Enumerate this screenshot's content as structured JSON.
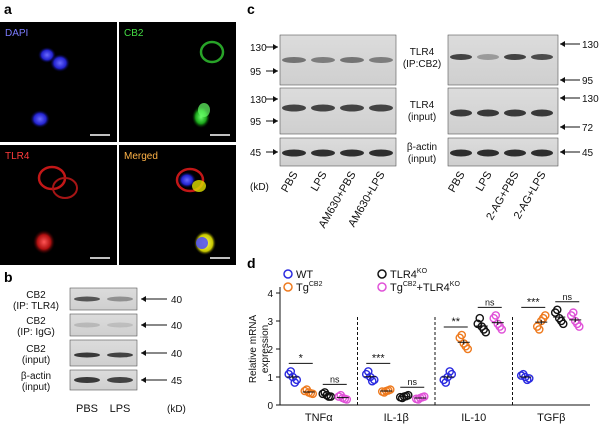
{
  "panels": {
    "a": {
      "letter": "a",
      "tiles": [
        {
          "label": "DAPI",
          "color": "#7b7bff"
        },
        {
          "label": "CB2",
          "color": "#44dd44"
        },
        {
          "label": "TLR4",
          "color": "#ff3b3b"
        },
        {
          "label": "Merged",
          "color": "#ffb347"
        }
      ]
    },
    "b": {
      "letter": "b",
      "rows": [
        {
          "label": [
            "CB2",
            "(IP: TLR4)"
          ],
          "marker": "40"
        },
        {
          "label": [
            "CB2",
            "(IP: IgG)"
          ],
          "marker": "40"
        },
        {
          "label": [
            "CB2",
            "(input)"
          ],
          "marker": "40"
        },
        {
          "label": [
            "β-actin",
            "(input)"
          ],
          "marker": "45"
        }
      ],
      "unit": "(kD)",
      "lanes": [
        "PBS",
        "LPS"
      ]
    },
    "c": {
      "letter": "c",
      "left_markers": [
        {
          "row": 0,
          "values": [
            "130",
            "95"
          ]
        },
        {
          "row": 1,
          "values": [
            "130",
            "95"
          ]
        },
        {
          "row": 2,
          "values": [
            "45"
          ]
        }
      ],
      "row_labels": [
        [
          "TLR4",
          "(IP:CB2)"
        ],
        [
          "TLR4",
          "(input)"
        ],
        [
          "β-actin",
          "(input)"
        ]
      ],
      "right_markers": [
        {
          "row": 0,
          "values": [
            "130",
            "95"
          ]
        },
        {
          "row": 1,
          "values": [
            "130",
            "72"
          ]
        },
        {
          "row": 2,
          "values": [
            "45"
          ]
        }
      ],
      "unit": "(kD)",
      "left_lanes": [
        "PBS",
        "LPS",
        "AM630+PBS",
        "AM630+LPS"
      ],
      "right_lanes": [
        "PBS",
        "LPS",
        "2-AG+PBS",
        "2-AG+LPS"
      ]
    },
    "d": {
      "letter": "d"
    }
  },
  "chart_data": {
    "type": "scatter",
    "ylabel": "Relative mRNA expression",
    "ylim": [
      0,
      4
    ],
    "yticks": [
      0,
      1,
      2,
      3,
      4
    ],
    "categories": [
      "TNFα",
      "IL-1β",
      "IL-10",
      "TGFβ"
    ],
    "legend": [
      {
        "name": "WT",
        "color": "#2a2ae0"
      },
      {
        "name": "TLR4",
        "sup": "KO",
        "color": "#111111"
      },
      {
        "name": "Tg",
        "sup": "CB2",
        "color": "#ee7a1e"
      },
      {
        "name": "Tg",
        "sup": "CB2",
        "suffix": "+TLR4",
        "sup2": "KO",
        "color": "#e052d8"
      }
    ],
    "series": [
      {
        "name": "WT",
        "color": "#2a2ae0",
        "values": [
          [
            1.0,
            1.1,
            0.9,
            1.2,
            0.8
          ],
          [
            1.0,
            1.1,
            0.9,
            1.2,
            0.85
          ],
          [
            1.0,
            0.9,
            1.1,
            0.8,
            1.2
          ],
          [
            1.0,
            1.05,
            0.95,
            1.1,
            0.9
          ]
        ]
      },
      {
        "name": "TgCB2",
        "color": "#ee7a1e",
        "values": [
          [
            0.45,
            0.5,
            0.4,
            0.55,
            0.42
          ],
          [
            0.5,
            0.48,
            0.55,
            0.45,
            0.52
          ],
          [
            2.2,
            2.4,
            2.0,
            2.5,
            2.1
          ],
          [
            3.0,
            2.8,
            3.2,
            2.7,
            3.1
          ]
        ]
      },
      {
        "name": "TLR4KO",
        "color": "#111111",
        "values": [
          [
            0.35,
            0.4,
            0.3,
            0.45,
            0.3
          ],
          [
            0.3,
            0.28,
            0.35,
            0.25,
            0.32
          ],
          [
            2.8,
            2.9,
            2.6,
            3.1,
            2.7
          ],
          [
            3.1,
            3.3,
            2.9,
            3.4,
            3.0
          ]
        ]
      },
      {
        "name": "TgCB2+TLR4KO",
        "color": "#e052d8",
        "values": [
          [
            0.25,
            0.3,
            0.2,
            0.35,
            0.22
          ],
          [
            0.25,
            0.22,
            0.3,
            0.2,
            0.28
          ],
          [
            2.9,
            3.1,
            2.7,
            3.2,
            2.8
          ],
          [
            3.0,
            3.2,
            2.8,
            3.3,
            2.9
          ]
        ]
      }
    ],
    "significance": [
      {
        "category": 0,
        "pair": "left",
        "label": "*"
      },
      {
        "category": 0,
        "pair": "right",
        "label": "ns"
      },
      {
        "category": 1,
        "pair": "left",
        "label": "***"
      },
      {
        "category": 1,
        "pair": "right",
        "label": "ns"
      },
      {
        "category": 2,
        "pair": "left",
        "label": "**"
      },
      {
        "category": 2,
        "pair": "right",
        "label": "ns"
      },
      {
        "category": 3,
        "pair": "left",
        "label": "***"
      },
      {
        "category": 3,
        "pair": "right",
        "label": "ns"
      }
    ]
  }
}
